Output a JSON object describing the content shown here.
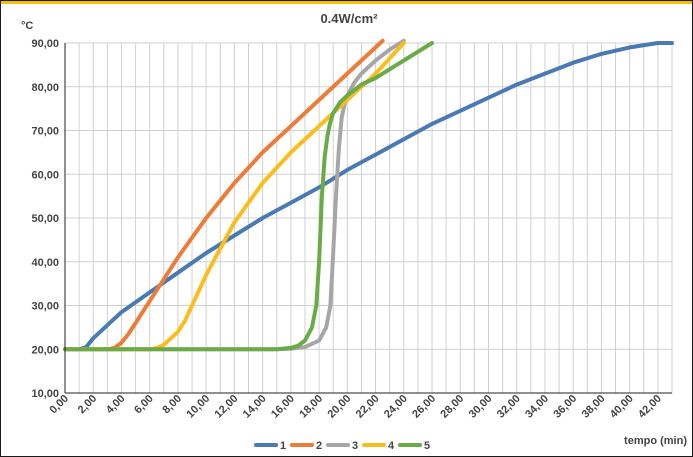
{
  "chart_data": {
    "type": "line",
    "title": "0.4W/cm²",
    "ylabel": "°C",
    "xlabel": "tempo (min)",
    "xlim": [
      0,
      43
    ],
    "ylim": [
      10,
      90
    ],
    "yticks": [
      "10,00",
      "20,00",
      "30,00",
      "40,00",
      "50,00",
      "60,00",
      "70,00",
      "80,00",
      "90,00"
    ],
    "xticks": [
      "0,00",
      "2,00",
      "4,00",
      "6,00",
      "8,00",
      "10,00",
      "12,00",
      "14,00",
      "16,00",
      "18,00",
      "20,00",
      "22,00",
      "24,00",
      "26,00",
      "28,00",
      "30,00",
      "32,00",
      "34,00",
      "36,00",
      "38,00",
      "40,00",
      "42,00"
    ],
    "grid": true,
    "legend_position": "bottom",
    "series": [
      {
        "name": "1",
        "color": "#4a7ab4",
        "x": [
          0,
          1,
          1.5,
          2,
          3,
          4,
          6,
          8,
          10,
          12,
          14,
          16,
          18,
          20,
          22,
          24,
          26,
          28,
          30,
          32,
          34,
          36,
          38,
          40,
          42,
          43
        ],
        "y": [
          20,
          20,
          20.5,
          22.5,
          25.5,
          28.5,
          33,
          37.5,
          42,
          46,
          50,
          53.5,
          57,
          61,
          64.5,
          68,
          71.5,
          74.5,
          77.5,
          80.5,
          83,
          85.5,
          87.5,
          89,
          90,
          90
        ]
      },
      {
        "name": "2",
        "color": "#ec7c38",
        "x": [
          0,
          2,
          3,
          3.5,
          4,
          4.5,
          5,
          6,
          7,
          8,
          10,
          12,
          14,
          16,
          18,
          20,
          21,
          22,
          22.5
        ],
        "y": [
          20,
          20,
          20,
          20.3,
          21.5,
          23.5,
          26,
          31,
          36,
          41,
          50,
          58,
          65,
          71,
          77,
          83,
          86,
          89,
          90.5
        ]
      },
      {
        "name": "3",
        "color": "#a6a6a6",
        "x": [
          0,
          4,
          8,
          12,
          15,
          16,
          17,
          18,
          18.5,
          18.8,
          19.0,
          19.2,
          19.4,
          19.6,
          19.8,
          20,
          20.5,
          21,
          22,
          23,
          24
        ],
        "y": [
          20,
          20,
          20,
          20,
          20,
          20.1,
          20.5,
          22,
          25,
          30,
          42,
          55,
          66,
          73,
          76,
          78,
          81,
          83,
          86,
          88.5,
          90.5
        ]
      },
      {
        "name": "4",
        "color": "#fbbd1e",
        "x": [
          0,
          4,
          6,
          6.5,
          7,
          7.5,
          8,
          8.5,
          9,
          10,
          11,
          12,
          14,
          16,
          18,
          20,
          22,
          24
        ],
        "y": [
          20,
          20,
          20,
          20.3,
          21,
          22.5,
          24,
          26.5,
          30,
          37,
          43,
          49,
          58,
          65,
          71,
          77,
          83,
          90
        ]
      },
      {
        "name": "5",
        "color": "#6bab47",
        "x": [
          0,
          4,
          8,
          12,
          15,
          16,
          16.5,
          17,
          17.5,
          17.8,
          18,
          18.2,
          18.4,
          18.6,
          18.8,
          19,
          19.5,
          20,
          21,
          22,
          24,
          26
        ],
        "y": [
          20,
          20,
          20,
          20,
          20,
          20.3,
          20.8,
          22,
          25,
          30,
          40,
          55,
          64,
          69,
          72,
          74,
          76.5,
          78,
          80.5,
          82,
          86,
          90
        ]
      }
    ]
  }
}
